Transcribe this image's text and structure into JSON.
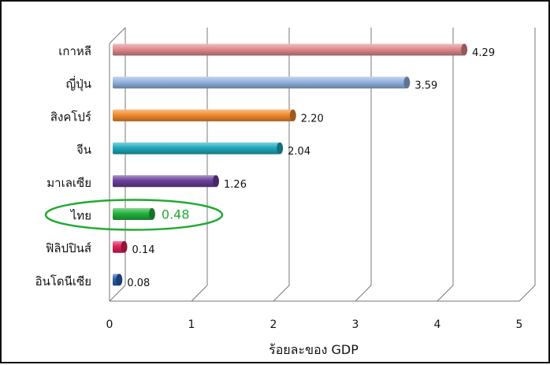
{
  "chart_data": {
    "type": "bar",
    "orientation": "horizontal",
    "categories": [
      "เกาหลี",
      "ญี่ปุ่น",
      "สิงคโปร์",
      "จีน",
      "มาเลเซีย",
      "ไทย",
      "ฟิลิปปินส์",
      "อินโดนีเซีย"
    ],
    "values": [
      4.29,
      3.59,
      2.2,
      2.04,
      1.26,
      0.48,
      0.14,
      0.08
    ],
    "value_labels": [
      "4.29",
      "3.59",
      "2.20",
      "2.04",
      "1.26",
      "0.48",
      "0.14",
      "0.08"
    ],
    "colors": [
      "#e08a8f",
      "#93b3e0",
      "#f28a2e",
      "#1fa9bd",
      "#6a3f9a",
      "#22b33c",
      "#e0205a",
      "#2c5fb0"
    ],
    "highlight": "ไทย",
    "highlight_color": "#22aa33",
    "xlabel": "ร้อยละของ GDP",
    "xlim": [
      0,
      5
    ],
    "xticks": [
      "0",
      "1",
      "2",
      "3",
      "4",
      "5"
    ],
    "grid": true
  }
}
